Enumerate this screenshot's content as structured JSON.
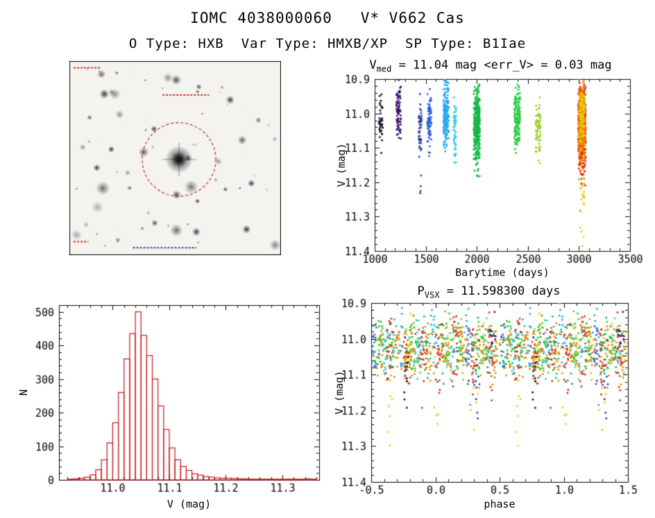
{
  "page": {
    "title": "IOMC 4038000060   V* V662 Cas",
    "subtitle": "O Type: HXB  Var Type: HMXB/XP  SP Type: B1Iae"
  },
  "styles": {
    "background": "#ffffff",
    "axis_color": "#000000",
    "text_color": "#000000"
  },
  "chart_data": [
    {
      "id": "finder",
      "type": "image",
      "description": "Grayscale sky finding chart, target star marked with dashed red circle",
      "background": "#f4f3ef",
      "border_color": "#000000",
      "circle_color": "#cc2222",
      "circle_radius_frac": 0.174,
      "center": [
        0.518,
        0.507
      ],
      "n_stars": 60,
      "seed": 12,
      "bright_stars": [
        {
          "x": 0.165,
          "y": 0.17,
          "r": 3.2
        },
        {
          "x": 0.76,
          "y": 0.2,
          "r": 2.8
        },
        {
          "x": 0.6,
          "y": 0.88,
          "r": 2.8
        },
        {
          "x": 0.13,
          "y": 0.55,
          "r": 2.4
        },
        {
          "x": 0.86,
          "y": 0.63,
          "r": 2.4
        },
        {
          "x": 0.4,
          "y": 0.35,
          "r": 2.2
        }
      ],
      "marks": [
        {
          "x": 0.02,
          "y": 0.035,
          "len": 0.13,
          "color": "#cc3333"
        },
        {
          "x": 0.44,
          "y": 0.175,
          "len": 0.22,
          "color": "#cc3333"
        },
        {
          "x": 0.3,
          "y": 0.962,
          "len": 0.3,
          "color": "#3f4a8c"
        },
        {
          "x": 0.02,
          "y": 0.93,
          "len": 0.07,
          "color": "#cc3333"
        }
      ]
    },
    {
      "id": "lightcurve",
      "type": "scatter",
      "title_pre": "V",
      "title_sub": "med",
      "title_post": " = 11.04 mag <err_V> = 0.03 mag",
      "xlabel": "Barytime (days)",
      "ylabel": "V (mag)",
      "xlim": [
        1000,
        3500
      ],
      "ylim": [
        10.9,
        11.4
      ],
      "y_inverted": true,
      "xticks": [
        1000,
        1500,
        2000,
        2500,
        3000,
        3500
      ],
      "xtick_labels": [
        "1000",
        "1500",
        "2000",
        "2500",
        "3000",
        "3500"
      ],
      "yticks": [
        10.9,
        11.0,
        11.1,
        11.2,
        11.3,
        11.4
      ],
      "ytick_labels": [
        "10.9",
        "11.0",
        "11.1",
        "11.2",
        "11.3",
        "11.4"
      ],
      "x_minor": 4,
      "y_minor": 4,
      "seed": 5,
      "clusters": [
        {
          "x": 1060,
          "x_spread": 18,
          "y": 11.03,
          "y_spread": 0.03,
          "n": 40,
          "color": "#181834"
        },
        {
          "x": 1235,
          "x_spread": 22,
          "y": 11.0,
          "y_spread": 0.035,
          "n": 80,
          "color": "#3c1070"
        },
        {
          "x": 1445,
          "x_spread": 15,
          "y": 11.05,
          "y_spread": 0.035,
          "n": 50,
          "color": "#343fa0"
        },
        {
          "x": 1450,
          "x_spread": 5,
          "y": 11.21,
          "y_spread": 0.015,
          "n": 4,
          "color": "#343fa0"
        },
        {
          "x": 1535,
          "x_spread": 20,
          "y": 11.02,
          "y_spread": 0.04,
          "n": 80,
          "color": "#2b62e0"
        },
        {
          "x": 1700,
          "x_spread": 26,
          "y": 11.0,
          "y_spread": 0.05,
          "n": 180,
          "color": "#28a8ee"
        },
        {
          "x": 1785,
          "x_spread": 12,
          "y": 11.05,
          "y_spread": 0.04,
          "n": 60,
          "color": "#38cce8"
        },
        {
          "x": 2000,
          "x_spread": 30,
          "y": 11.04,
          "y_spread": 0.055,
          "n": 350,
          "color": "#16b944"
        },
        {
          "x": 2395,
          "x_spread": 28,
          "y": 11.01,
          "y_spread": 0.045,
          "n": 150,
          "color": "#2bcc44"
        },
        {
          "x": 2600,
          "x_spread": 24,
          "y": 11.05,
          "y_spread": 0.038,
          "n": 70,
          "color": "#9ccd2a"
        },
        {
          "x": 3030,
          "x_spread": 36,
          "y": 11.05,
          "y_spread": 0.06,
          "n": 500,
          "color": "#e23312"
        },
        {
          "x": 3028,
          "x_spread": 30,
          "y": 11.03,
          "y_spread": 0.05,
          "n": 260,
          "color": "#f08a00"
        },
        {
          "x": 3035,
          "x_spread": 22,
          "y": 11.2,
          "y_spread": 0.08,
          "n": 30,
          "color": "#e8cc10"
        },
        {
          "x": 3030,
          "x_spread": 25,
          "y": 11.0,
          "y_spread": 0.04,
          "n": 80,
          "color": "#e8cc10"
        }
      ]
    },
    {
      "id": "histogram",
      "type": "bar",
      "xlabel": "V (mag)",
      "ylabel": "N",
      "bar_color": "#cc1111",
      "xlim": [
        10.905,
        11.365
      ],
      "ylim": [
        0,
        520
      ],
      "xticks": [
        11.0,
        11.1,
        11.2,
        11.3
      ],
      "xtick_labels": [
        "11.0",
        "11.1",
        "11.2",
        "11.3"
      ],
      "yticks": [
        0,
        100,
        200,
        300,
        400,
        500
      ],
      "ytick_labels": [
        "0",
        "100",
        "200",
        "300",
        "400",
        "500"
      ],
      "x_minor": 4,
      "y_minor": 4,
      "bin_start": 10.92,
      "bin_width": 0.01,
      "counts": [
        2,
        3,
        5,
        8,
        15,
        30,
        60,
        110,
        170,
        260,
        360,
        435,
        500,
        430,
        370,
        300,
        220,
        150,
        95,
        60,
        40,
        28,
        18,
        14,
        10,
        8,
        6,
        5,
        5,
        4,
        3,
        3,
        2,
        2,
        2,
        2,
        2,
        2,
        2,
        2,
        2,
        2,
        3,
        2
      ]
    },
    {
      "id": "phase",
      "type": "scatter",
      "title_pre": "P",
      "title_sub": "VSX",
      "title_post": " = 11.598300 days",
      "period_days": 11.5983,
      "xlabel": "phase",
      "ylabel": "V (mag)",
      "xlim": [
        -0.5,
        1.5
      ],
      "ylim": [
        10.9,
        11.4
      ],
      "y_inverted": true,
      "xticks": [
        -0.5,
        0.0,
        0.5,
        1.0,
        1.5
      ],
      "xtick_labels": [
        "-0.5",
        "0.0",
        "0.5",
        "1.0",
        "1.5"
      ],
      "yticks": [
        10.9,
        11.0,
        11.1,
        11.2,
        11.3,
        11.4
      ],
      "ytick_labels": [
        "10.9",
        "11.0",
        "11.1",
        "11.2",
        "11.3",
        "11.4"
      ],
      "x_minor": 4,
      "y_minor": 4,
      "seed": 9,
      "groups": [
        {
          "color": "#16b944",
          "centers": [
            -0.46,
            -0.34,
            -0.21,
            -0.08,
            0.05,
            0.18,
            0.31,
            0.44
          ],
          "n_per_center": 22,
          "y": 11.03,
          "y_spread": 0.045,
          "phase_jitter": 0.02
        },
        {
          "color": "#2bcc44",
          "centers": [
            -0.41,
            -0.16,
            0.09,
            0.36
          ],
          "n_per_center": 18,
          "y": 11.02,
          "y_spread": 0.04,
          "phase_jitter": 0.02
        },
        {
          "color": "#38cce8",
          "centers": [
            -0.38,
            -0.13,
            0.14,
            0.4
          ],
          "n_per_center": 22,
          "y": 11.03,
          "y_spread": 0.04,
          "phase_jitter": 0.02
        },
        {
          "color": "#28a8ee",
          "centers": [
            -0.28,
            -0.02,
            0.26
          ],
          "n_per_center": 22,
          "y": 11.01,
          "y_spread": 0.045,
          "phase_jitter": 0.02
        },
        {
          "color": "#9ccd2a",
          "centers": [
            -0.24,
            0.21
          ],
          "n_per_center": 16,
          "y": 11.04,
          "y_spread": 0.035,
          "phase_jitter": 0.018
        },
        {
          "color": "#f08a00",
          "centers": [
            -0.43,
            -0.3,
            -0.18,
            -0.05,
            0.08,
            0.22,
            0.35,
            0.47
          ],
          "n_per_center": 20,
          "y": 11.03,
          "y_spread": 0.045,
          "phase_jitter": 0.018
        },
        {
          "color": "#e23312",
          "centers": [
            -0.36,
            -0.23,
            -0.11,
            0.02,
            0.16,
            0.29,
            0.43
          ],
          "n_per_center": 24,
          "y": 11.04,
          "y_spread": 0.05,
          "phase_jitter": 0.018
        },
        {
          "color": "#e8cc10",
          "centers": [
            -0.36,
            0.0,
            0.3
          ],
          "n_per_center": 8,
          "y": 11.15,
          "y_spread": 0.1,
          "phase_jitter": 0.015
        },
        {
          "color": "#e8cc10",
          "centers": [
            -0.2,
            0.1,
            0.4
          ],
          "n_per_center": 10,
          "y": 11.02,
          "y_spread": 0.04,
          "phase_jitter": 0.015
        },
        {
          "color": "#343fa0",
          "centers": [
            0.33
          ],
          "n_per_center": 10,
          "y": 11.12,
          "y_spread": 0.06,
          "phase_jitter": 0.012
        },
        {
          "color": "#181834",
          "centers": [
            -0.23
          ],
          "n_per_center": 10,
          "y": 11.1,
          "y_spread": 0.06,
          "phase_jitter": 0.012
        },
        {
          "color": "#2b62e0",
          "centers": [
            -0.47,
            0.25
          ],
          "n_per_center": 12,
          "y": 11.03,
          "y_spread": 0.04,
          "phase_jitter": 0.015
        },
        {
          "color": "#3c1070",
          "centers": [
            0.45
          ],
          "n_per_center": 10,
          "y": 11.0,
          "y_spread": 0.035,
          "phase_jitter": 0.012
        }
      ]
    }
  ]
}
